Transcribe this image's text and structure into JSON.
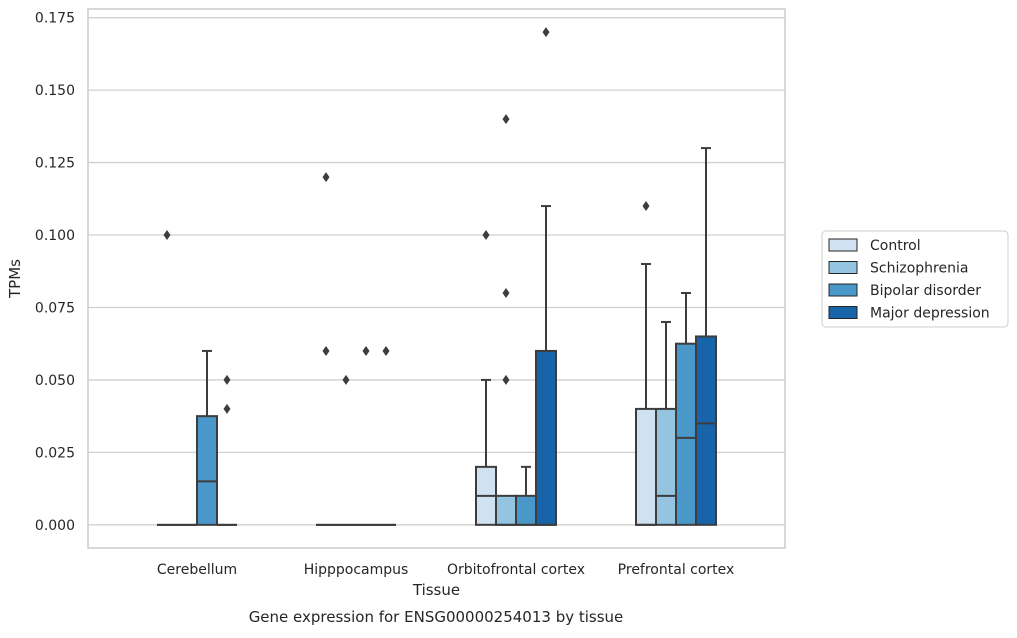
{
  "chart_data": {
    "type": "box",
    "xlabel": "Tissue",
    "ylabel": "TPMs",
    "caption": "Gene expression for ENSG00000254013 by tissue",
    "ylim": [
      -0.008,
      0.178
    ],
    "yticks": [
      0.0,
      0.025,
      0.05,
      0.075,
      0.1,
      0.125,
      0.15,
      0.175
    ],
    "ytick_labels": [
      "0.000",
      "0.025",
      "0.050",
      "0.075",
      "0.100",
      "0.125",
      "0.150",
      "0.175"
    ],
    "grid": "horizontal",
    "legend_position": "right",
    "categories": [
      "Cerebellum",
      "Hipppocampus",
      "Orbitofrontal cortex",
      "Prefrontal cortex"
    ],
    "series": [
      {
        "name": "Control",
        "color": "#d0e1f2",
        "boxes": [
          {
            "q1": 0.0,
            "median": 0.0,
            "q3": 0.0,
            "whisker_low": 0.0,
            "whisker_high": 0.0,
            "outliers": [
              0.1
            ]
          },
          {
            "q1": 0.0,
            "median": 0.0,
            "q3": 0.0,
            "whisker_low": 0.0,
            "whisker_high": 0.0,
            "outliers": [
              0.12,
              0.06
            ]
          },
          {
            "q1": 0.0,
            "median": 0.01,
            "q3": 0.02,
            "whisker_low": 0.0,
            "whisker_high": 0.05,
            "outliers": [
              0.1
            ]
          },
          {
            "q1": 0.0,
            "median": 0.0,
            "q3": 0.04,
            "whisker_low": 0.0,
            "whisker_high": 0.09,
            "outliers": [
              0.11
            ]
          }
        ]
      },
      {
        "name": "Schizophrenia",
        "color": "#94c4df",
        "boxes": [
          {
            "q1": 0.0,
            "median": 0.0,
            "q3": 0.0,
            "whisker_low": 0.0,
            "whisker_high": 0.0,
            "outliers": []
          },
          {
            "q1": 0.0,
            "median": 0.0,
            "q3": 0.0,
            "whisker_low": 0.0,
            "whisker_high": 0.0,
            "outliers": [
              0.05
            ]
          },
          {
            "q1": 0.0,
            "median": 0.0,
            "q3": 0.01,
            "whisker_low": 0.0,
            "whisker_high": 0.01,
            "outliers": [
              0.14,
              0.08,
              0.05
            ]
          },
          {
            "q1": 0.0,
            "median": 0.01,
            "q3": 0.04,
            "whisker_low": 0.0,
            "whisker_high": 0.07,
            "outliers": []
          }
        ]
      },
      {
        "name": "Bipolar disorder",
        "color": "#4a98c9",
        "boxes": [
          {
            "q1": 0.0,
            "median": 0.015,
            "q3": 0.0375,
            "whisker_low": 0.0,
            "whisker_high": 0.06,
            "outliers": []
          },
          {
            "q1": 0.0,
            "median": 0.0,
            "q3": 0.0,
            "whisker_low": 0.0,
            "whisker_high": 0.0,
            "outliers": [
              0.06
            ]
          },
          {
            "q1": 0.0,
            "median": 0.0,
            "q3": 0.01,
            "whisker_low": 0.0,
            "whisker_high": 0.02,
            "outliers": []
          },
          {
            "q1": 0.0,
            "median": 0.03,
            "q3": 0.0625,
            "whisker_low": 0.0,
            "whisker_high": 0.08,
            "outliers": []
          }
        ]
      },
      {
        "name": "Major depression",
        "color": "#1764ab",
        "boxes": [
          {
            "q1": 0.0,
            "median": 0.0,
            "q3": 0.0,
            "whisker_low": 0.0,
            "whisker_high": 0.0,
            "outliers": [
              0.05,
              0.04
            ]
          },
          {
            "q1": 0.0,
            "median": 0.0,
            "q3": 0.0,
            "whisker_low": 0.0,
            "whisker_high": 0.0,
            "outliers": [
              0.06
            ]
          },
          {
            "q1": 0.0,
            "median": 0.0,
            "q3": 0.06,
            "whisker_low": 0.0,
            "whisker_high": 0.11,
            "outliers": [
              0.17
            ]
          },
          {
            "q1": 0.0,
            "median": 0.035,
            "q3": 0.065,
            "whisker_low": 0.0,
            "whisker_high": 0.13,
            "outliers": []
          }
        ]
      }
    ]
  }
}
